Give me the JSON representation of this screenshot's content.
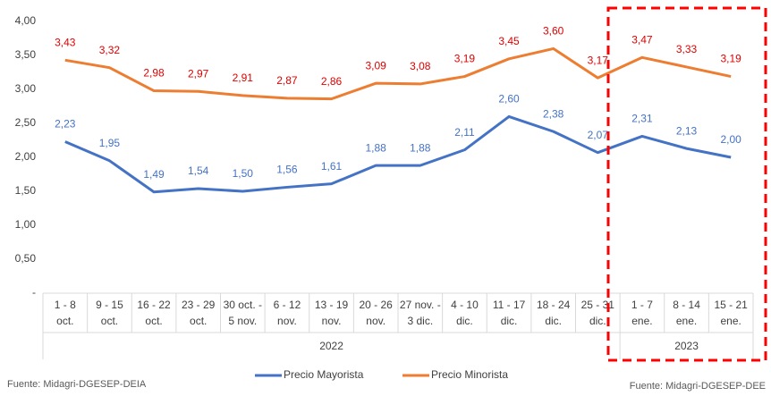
{
  "chart_data": {
    "type": "line",
    "categories": [
      [
        "1 - 8",
        "oct."
      ],
      [
        "9 - 15",
        "oct."
      ],
      [
        "16 - 22",
        "oct."
      ],
      [
        "23 - 29",
        "oct."
      ],
      [
        "30 oct. -",
        "5 nov."
      ],
      [
        "6 - 12",
        "nov."
      ],
      [
        "13 - 19",
        "nov."
      ],
      [
        "20 - 26",
        "nov."
      ],
      [
        "27 nov. -",
        "3 dic."
      ],
      [
        "4 - 10",
        "dic."
      ],
      [
        "11 - 17",
        "dic."
      ],
      [
        "18 - 24",
        "dic."
      ],
      [
        "25 - 31",
        "dic."
      ],
      [
        "1 - 7",
        "ene."
      ],
      [
        "8 - 14",
        "ene."
      ],
      [
        "15 - 21",
        "ene."
      ]
    ],
    "x_groups": [
      {
        "label": "2022",
        "count": 13
      },
      {
        "label": "2023",
        "count": 3
      }
    ],
    "series": [
      {
        "name": "Precio Mayorista",
        "color": "#4472c4",
        "label_color": "#4472c4",
        "values": [
          2.23,
          1.95,
          1.49,
          1.54,
          1.5,
          1.56,
          1.61,
          1.88,
          1.88,
          2.11,
          2.6,
          2.38,
          2.07,
          2.31,
          2.13,
          2.0
        ],
        "value_labels": [
          "2,23",
          "1,95",
          "1,49",
          "1,54",
          "1,50",
          "1,56",
          "1,61",
          "1,88",
          "1,88",
          "2,11",
          "2,60",
          "2,38",
          "2,07",
          "2,31",
          "2,13",
          "2,00"
        ]
      },
      {
        "name": "Precio Minorista",
        "color": "#ed7d31",
        "label_color": "#e00000",
        "values": [
          3.43,
          3.32,
          2.98,
          2.97,
          2.91,
          2.87,
          2.86,
          3.09,
          3.08,
          3.19,
          3.45,
          3.6,
          3.17,
          3.47,
          3.33,
          3.19
        ],
        "value_labels": [
          "3,43",
          "3,32",
          "2,98",
          "2,97",
          "2,91",
          "2,87",
          "2,86",
          "3,09",
          "3,08",
          "3,19",
          "3,45",
          "3,60",
          "3,17",
          "3,47",
          "3,33",
          "3,19"
        ]
      }
    ],
    "ylim": [
      0,
      4
    ],
    "yticks": [
      {
        "value": 0,
        "label": "-"
      },
      {
        "value": 0.5,
        "label": "0,50"
      },
      {
        "value": 1,
        "label": "1,00"
      },
      {
        "value": 1.5,
        "label": "1,50"
      },
      {
        "value": 2,
        "label": "2,00"
      },
      {
        "value": 2.5,
        "label": "2,50"
      },
      {
        "value": 3,
        "label": "3,00"
      },
      {
        "value": 3.5,
        "label": "3,50"
      },
      {
        "value": 4,
        "label": "4,00"
      }
    ],
    "legend": "bottom"
  },
  "footer": {
    "left": "Fuente: Midagri-DGESEP-DEIA",
    "right": "Fuente: Midagri-DGESEP-DEE"
  }
}
